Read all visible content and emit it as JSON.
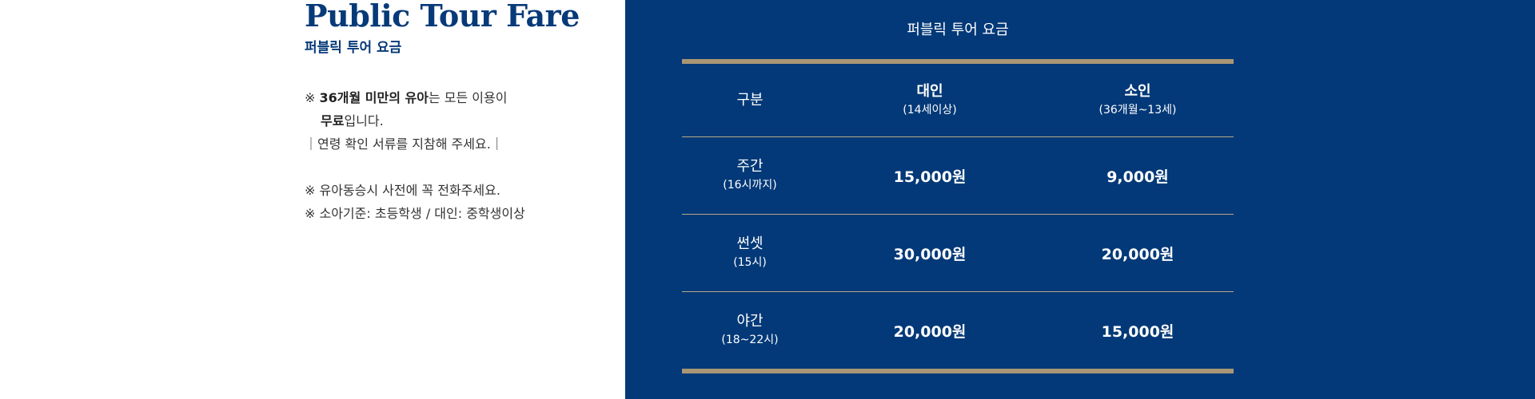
{
  "left": {
    "title": "Public Tour Fare",
    "subtitle": "퍼블릭 투어 요금",
    "notes": {
      "line1_prefix": "※ ",
      "line1_bold": "36개월 미만의 유아",
      "line1_suffix": "는 모든 이용이",
      "line2_bold": "무료",
      "line2_suffix": "입니다.",
      "line3": "｜연령 확인 서류를 지참해 주세요.｜",
      "line4": "※ 유아동승시 사전에 꼭 전화주세요.",
      "line5": "※ 소아기준: 초등학생  /  대인: 중학생이상"
    }
  },
  "table": {
    "title": "퍼블릭 투어 요금",
    "header": {
      "category": "구분",
      "adult": "대인",
      "adult_sub": "(14세이상)",
      "child": "소인",
      "child_sub": "(36개월~13세)"
    },
    "rows": [
      {
        "name": "주간",
        "sub": "(16시까지)",
        "adult": "15,000원",
        "child": "9,000원"
      },
      {
        "name": "썬셋",
        "sub": "(15시)",
        "adult": "30,000원",
        "child": "20,000원"
      },
      {
        "name": "야간",
        "sub": "(18~22시)",
        "adult": "20,000원",
        "child": "15,000원"
      }
    ]
  },
  "colors": {
    "navy": "#033978",
    "title_blue": "#073a78",
    "gold": "#a99674"
  }
}
